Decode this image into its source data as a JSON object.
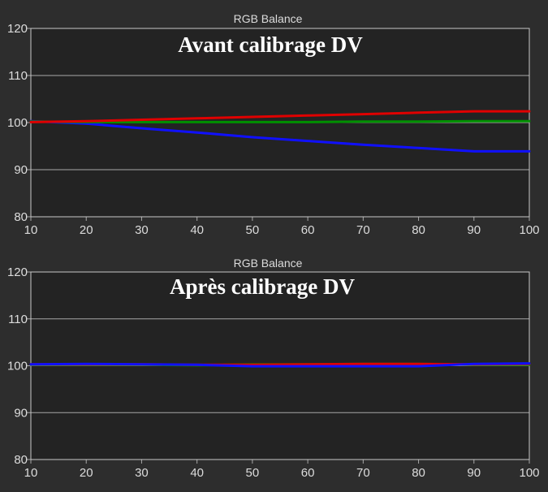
{
  "colors": {
    "background": "#2d2d2d",
    "plot_background": "#232323",
    "grid": "#a8a8a8",
    "text": "#dcdcdc",
    "red": "#e00000",
    "green": "#009000",
    "blue": "#1010ff"
  },
  "chart_data": [
    {
      "type": "line",
      "title": "RGB Balance",
      "annotation": "Avant calibrage DV",
      "xlim": [
        10,
        100
      ],
      "ylim": [
        80,
        120
      ],
      "xticks": [
        "10",
        "20",
        "30",
        "40",
        "50",
        "60",
        "70",
        "80",
        "90",
        "100"
      ],
      "yticks": [
        "80",
        "90",
        "100",
        "110",
        "120"
      ],
      "grid": "horizontal",
      "x": [
        10,
        20,
        30,
        40,
        50,
        60,
        70,
        80,
        90,
        100
      ],
      "series": [
        {
          "color": "#1010ff",
          "values": [
            100.3,
            99.8,
            98.8,
            97.9,
            96.9,
            96.1,
            95.3,
            94.6,
            93.9,
            93.9
          ]
        },
        {
          "color": "#009000",
          "values": [
            100.2,
            100.1,
            100.1,
            100.1,
            100.1,
            100.1,
            100.2,
            100.2,
            100.3,
            100.3
          ]
        },
        {
          "color": "#e00000",
          "values": [
            100.1,
            100.3,
            100.6,
            100.9,
            101.2,
            101.5,
            101.8,
            102.1,
            102.4,
            102.4
          ]
        }
      ]
    },
    {
      "type": "line",
      "title": "RGB Balance",
      "annotation": "Après calibrage DV",
      "xlim": [
        10,
        100
      ],
      "ylim": [
        80,
        120
      ],
      "xticks": [
        "10",
        "20",
        "30",
        "40",
        "50",
        "60",
        "70",
        "80",
        "90",
        "100"
      ],
      "yticks": [
        "80",
        "90",
        "100",
        "110",
        "120"
      ],
      "grid": "horizontal",
      "x": [
        10,
        20,
        30,
        40,
        50,
        60,
        70,
        80,
        90,
        100
      ],
      "series": [
        {
          "color": "#009000",
          "values": [
            100.2,
            100.2,
            100.2,
            100.1,
            100.3,
            100.3,
            100.4,
            100.4,
            100.2,
            100.2
          ]
        },
        {
          "color": "#e00000",
          "values": [
            100.3,
            100.3,
            100.3,
            100.2,
            100.2,
            100.3,
            100.4,
            100.4,
            100.3,
            100.4
          ]
        },
        {
          "color": "#1010ff",
          "values": [
            100.3,
            100.4,
            100.3,
            100.2,
            99.9,
            99.9,
            99.9,
            99.9,
            100.4,
            100.5
          ]
        }
      ]
    }
  ]
}
